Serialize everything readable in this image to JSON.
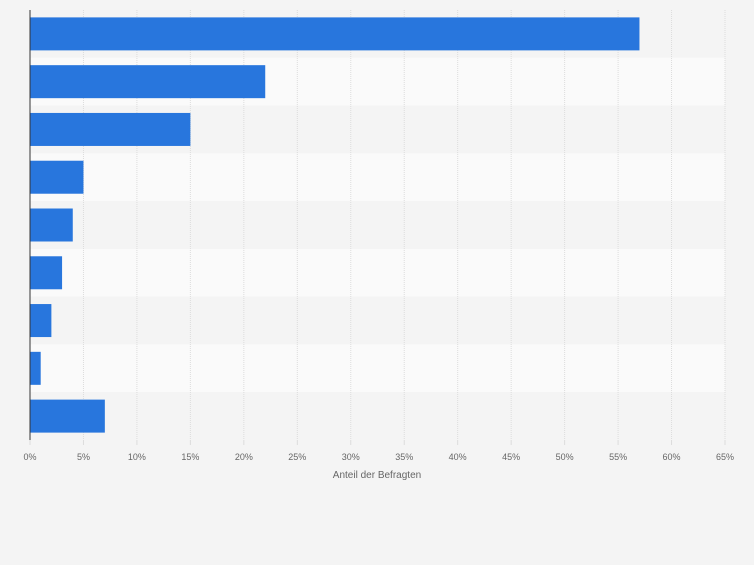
{
  "chart_data": {
    "type": "bar",
    "orientation": "horizontal",
    "title": "",
    "xlabel": "Anteil der Befragten",
    "ylabel": "",
    "categories": [
      "",
      "",
      "",
      "",
      "",
      "",
      "",
      "",
      ""
    ],
    "values": [
      57,
      22,
      15,
      5,
      4,
      3,
      2,
      1,
      7
    ],
    "xlim": [
      0,
      65
    ],
    "x_ticks": [
      0,
      5,
      10,
      15,
      20,
      25,
      30,
      35,
      40,
      45,
      50,
      55,
      60,
      65
    ],
    "x_tick_labels": [
      "0%",
      "5%",
      "10%",
      "15%",
      "20%",
      "25%",
      "30%",
      "35%",
      "40%",
      "45%",
      "50%",
      "55%",
      "60%",
      "65%"
    ],
    "grid": true,
    "legend": "none",
    "colors": {
      "bar": "#2876dd",
      "band_light": "#fafafa",
      "band_dark": "#f4f4f4",
      "grid": "#dcdcdc",
      "axis": "#333333",
      "tick_text": "#666666",
      "background": "#f4f4f4"
    }
  }
}
